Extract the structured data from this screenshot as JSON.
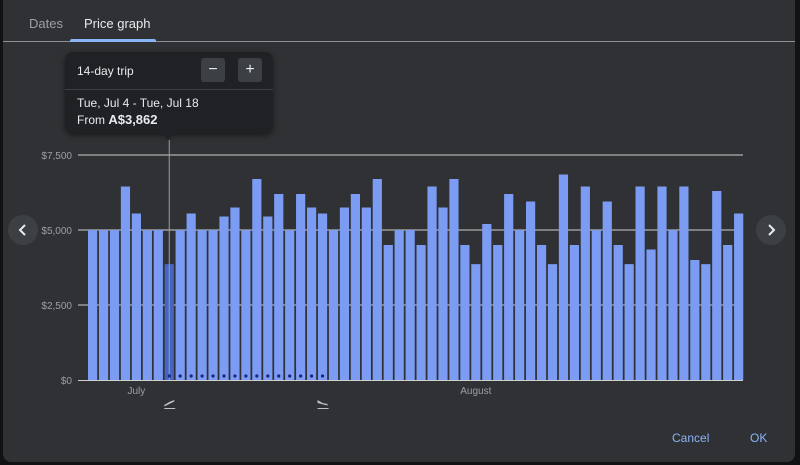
{
  "tabs": [
    {
      "label": "Dates",
      "active": false
    },
    {
      "label": "Price graph",
      "active": true
    }
  ],
  "tooltip": {
    "trip_length": "14-day trip",
    "decrease_symbol": "−",
    "increase_symbol": "+",
    "date_range": "Tue, Jul 4 - Tue, Jul 18",
    "from_label": "From",
    "price": "A$3,862"
  },
  "nav": {
    "prev_icon": "chevron-left-icon",
    "next_icon": "chevron-right-icon"
  },
  "footer": {
    "cancel_label": "Cancel",
    "ok_label": "OK"
  },
  "colors": {
    "bar": "#7b9cf2",
    "bar_selected": "#4465c4",
    "accent": "#8ab4f8",
    "grid": "#d0d0d0",
    "background": "#303134"
  },
  "chart_data": {
    "type": "bar",
    "currency": "A$",
    "ylim": [
      0,
      7500
    ],
    "y_ticks": [
      {
        "value": 0,
        "label": "$0"
      },
      {
        "value": 2500,
        "label": "$2,500"
      },
      {
        "value": 5000,
        "label": "$5,000"
      },
      {
        "value": 7500,
        "label": "$7,500"
      }
    ],
    "month_labels": [
      {
        "label": "July",
        "index": 4
      },
      {
        "label": "August",
        "index": 35
      }
    ],
    "values": [
      5000,
      5000,
      5000,
      6450,
      5550,
      5000,
      5000,
      3862,
      5000,
      5550,
      5000,
      5000,
      5450,
      5750,
      5000,
      6700,
      5450,
      6200,
      5000,
      6200,
      5750,
      5550,
      5000,
      5750,
      6200,
      5750,
      6700,
      4500,
      5000,
      5000,
      4500,
      6450,
      5750,
      6700,
      4500,
      3862,
      5200,
      4500,
      6200,
      5000,
      5950,
      4500,
      3862,
      6850,
      4500,
      6450,
      5000,
      5950,
      4500,
      3862,
      6450,
      4350,
      6450,
      5000,
      6450,
      4000,
      3862,
      6300,
      4500,
      5550
    ],
    "selected_index": 7,
    "trip_dot_range": [
      7,
      21
    ],
    "departure_index": 7,
    "return_index": 21,
    "grid": true
  }
}
